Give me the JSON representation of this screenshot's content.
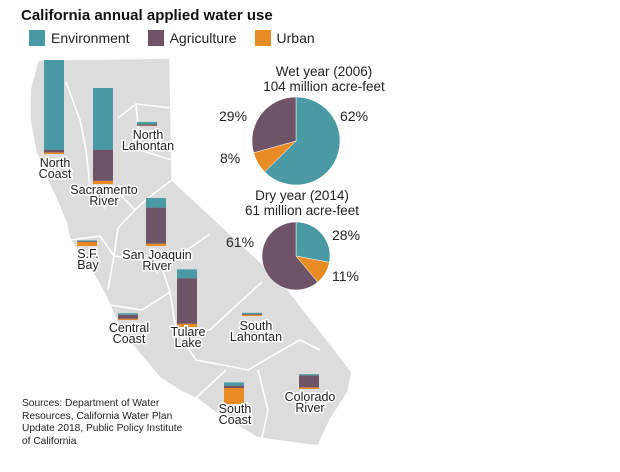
{
  "title": "California annual applied water use",
  "colors": {
    "environment": "#4a9aa5",
    "agriculture": "#6e5466",
    "urban": "#e98b25",
    "map_fill": "#dcdcdc",
    "map_stroke": "#ffffff"
  },
  "legend": [
    {
      "key": "environment",
      "label": "Environment"
    },
    {
      "key": "agriculture",
      "label": "Agriculture"
    },
    {
      "key": "urban",
      "label": "Urban"
    }
  ],
  "sources": "Sources: Department of Water Resources, California Water Plan Update 2018, Public Policy Institute of California",
  "chart_data": [
    {
      "type": "bar",
      "title": "Regional applied water use (stacked, wet vs. dry not distinguished)",
      "series_order": [
        "urban",
        "agriculture",
        "environment"
      ],
      "regions": [
        {
          "name": "North Coast",
          "label_lines": [
            "North",
            "Coast"
          ],
          "environment": 22.4,
          "agriculture": 0.7,
          "urban": 0.4
        },
        {
          "name": "Sacramento River",
          "label_lines": [
            "Sacramento",
            "River"
          ],
          "environment": 15.4,
          "agriculture": 7.8,
          "urban": 0.8
        },
        {
          "name": "North Lahontan",
          "label_lines": [
            "North",
            "Lahontan"
          ],
          "environment": 0.6,
          "agriculture": 0.3,
          "urban": 0.1
        },
        {
          "name": "San Joaquin River",
          "label_lines": [
            "San Joaquin",
            "River"
          ],
          "environment": 2.4,
          "agriculture": 9.0,
          "urban": 0.6
        },
        {
          "name": "S.F. Bay",
          "label_lines": [
            "S.F.",
            "Bay"
          ],
          "environment": 0.2,
          "agriculture": 0.2,
          "urban": 1.0
        },
        {
          "name": "Tulare Lake",
          "label_lines": [
            "Tulare",
            "Lake"
          ],
          "environment": 2.2,
          "agriculture": 11.4,
          "urban": 0.8
        },
        {
          "name": "Central Coast",
          "label_lines": [
            "Central",
            "Coast"
          ],
          "environment": 0.4,
          "agriculture": 1.0,
          "urban": 0.3
        },
        {
          "name": "South Lahontan",
          "label_lines": [
            "South",
            "Lahontan"
          ],
          "environment": 0.3,
          "agriculture": 0.2,
          "urban": 0.3
        },
        {
          "name": "South Coast",
          "label_lines": [
            "South",
            "Coast"
          ],
          "environment": 0.8,
          "agriculture": 0.6,
          "urban": 4.0
        },
        {
          "name": "Colorado River",
          "label_lines": [
            "Colorado",
            "River"
          ],
          "environment": 0.3,
          "agriculture": 3.0,
          "urban": 0.4
        }
      ]
    },
    {
      "type": "pie",
      "title_lines": [
        "Wet year (2006)",
        "104 million acre-feet"
      ],
      "slices": [
        {
          "key": "environment",
          "value": 62,
          "label": "62%"
        },
        {
          "key": "urban",
          "value": 8,
          "label": "8%"
        },
        {
          "key": "agriculture",
          "value": 29,
          "label": "29%"
        }
      ]
    },
    {
      "type": "pie",
      "title_lines": [
        "Dry year (2014)",
        "61 million acre-feet"
      ],
      "slices": [
        {
          "key": "environment",
          "value": 28,
          "label": "28%"
        },
        {
          "key": "urban",
          "value": 11,
          "label": "11%"
        },
        {
          "key": "agriculture",
          "value": 61,
          "label": "61%"
        }
      ]
    }
  ]
}
